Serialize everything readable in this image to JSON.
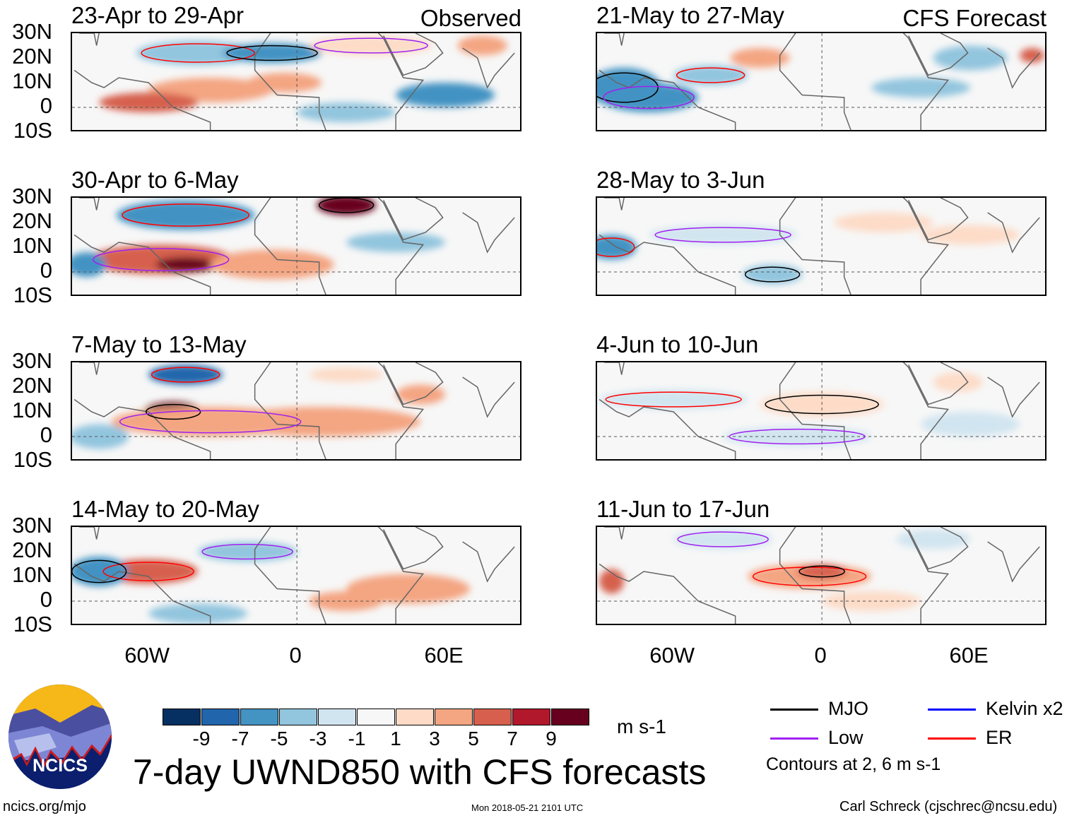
{
  "panels": [
    {
      "title": "23-Apr to 29-Apr",
      "label": "Observed",
      "column": "observed"
    },
    {
      "title": "30-Apr to 6-May",
      "label": "",
      "column": "observed"
    },
    {
      "title": "7-May to 13-May",
      "label": "",
      "column": "observed"
    },
    {
      "title": "14-May to 20-May",
      "label": "",
      "column": "observed"
    },
    {
      "title": "21-May to 27-May",
      "label": "CFS Forecast",
      "column": "forecast"
    },
    {
      "title": "28-May to 3-Jun",
      "label": "",
      "column": "forecast"
    },
    {
      "title": "4-Jun to 10-Jun",
      "label": "",
      "column": "forecast"
    },
    {
      "title": "11-Jun to 17-Jun",
      "label": "",
      "column": "forecast"
    }
  ],
  "lat_labels": [
    "30N",
    "20N",
    "10N",
    "0",
    "10S"
  ],
  "lon_labels": [
    "60W",
    "0",
    "60E"
  ],
  "colorbar": {
    "colors": [
      "#053061",
      "#2166ac",
      "#4393c3",
      "#92c5de",
      "#d1e5f0",
      "#f7f7f7",
      "#fddbc7",
      "#f4a582",
      "#d6604d",
      "#b2182b",
      "#67001f"
    ],
    "ticks": [
      "-9",
      "-7",
      "-5",
      "-3",
      "-1",
      "1",
      "3",
      "5",
      "7",
      "9"
    ],
    "unit": "m s-1"
  },
  "legend": {
    "items": [
      {
        "label": "MJO",
        "color": "#000000"
      },
      {
        "label": "Kelvin x2",
        "color": "#0000ff"
      },
      {
        "label": "Low",
        "color": "#a020f0"
      },
      {
        "label": "ER",
        "color": "#ff0000"
      }
    ],
    "note": "Contours at 2, 6 m s-1"
  },
  "title": "7-day UWND850 with CFS forecasts",
  "logo_text": "NCICS",
  "footer": {
    "left": "ncics.org/mjo",
    "center": "Mon 2018-05-21 2101 UTC",
    "right": "Carl Schreck (cjschrec@ncsu.edu)"
  }
}
